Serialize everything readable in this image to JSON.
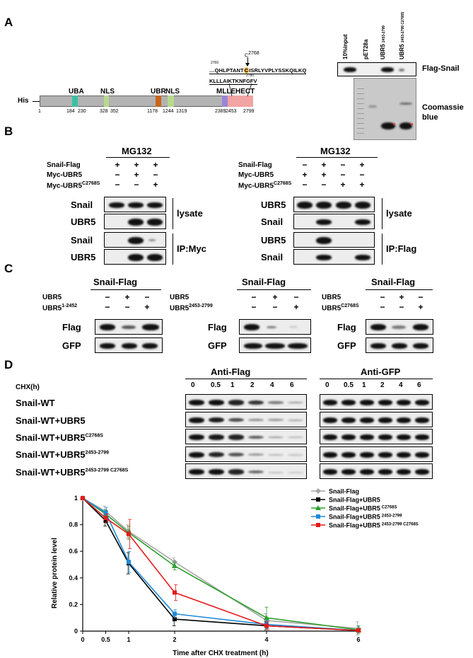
{
  "panelA": {
    "letter": "A",
    "his": "His",
    "domains": [
      "UBA",
      "NLS",
      "UBR",
      "NLS",
      "MLLE",
      "HECT"
    ],
    "positions": [
      "1",
      "184",
      "230",
      "328",
      "352",
      "1178",
      "1244",
      "1319",
      "2389",
      "2453",
      "2799"
    ],
    "cys_label": "C",
    "cys_sup": "2768",
    "seq_start": "2760",
    "seq_line1_pre": "…QHLPTANT",
    "seq_line1_c": "C",
    "seq_line1_post": "ISRLYVPLYSSKQILKQ",
    "seq_mid": "2780",
    "seq_line2": "KLLLAIKTKNFGFV",
    "gel_lanes": [
      "10%input",
      "pET28a",
      "UBR5",
      "UBR5"
    ],
    "gel_lane_sups": [
      "",
      "",
      "2453-2799",
      "2453-2799 C2768S"
    ],
    "flag_snail": "Flag-Snail",
    "coomassie": "Coomassie blue"
  },
  "panelB": {
    "letter": "B",
    "left": {
      "treatment": "MG132",
      "rows": [
        "Snail-Flag",
        "Myc-UBR5",
        "Myc-UBR5"
      ],
      "row_sups": [
        "",
        "",
        "C2768S"
      ],
      "signs": [
        [
          "+",
          "+",
          "+"
        ],
        [
          "−",
          "+",
          "−"
        ],
        [
          "−",
          "−",
          "+"
        ]
      ],
      "blots": [
        "Snail",
        "UBR5",
        "Snail",
        "UBR5"
      ],
      "groups": [
        "lysate",
        "IP:Myc"
      ]
    },
    "right": {
      "treatment": "MG132",
      "rows": [
        "Snail-Flag",
        "Myc-UBR5",
        "Myc-UBR5"
      ],
      "row_sups": [
        "",
        "",
        "C2768S"
      ],
      "signs": [
        [
          "−",
          "+",
          "−",
          "+"
        ],
        [
          "+",
          "+",
          "−",
          "−"
        ],
        [
          "−",
          "−",
          "+",
          "+"
        ]
      ],
      "blots": [
        "UBR5",
        "Snail",
        "UBR5",
        "Snail"
      ],
      "groups": [
        "lysate",
        "IP:Flag"
      ]
    }
  },
  "panelC": {
    "letter": "C",
    "title": "Snail-Flag",
    "subpanels": [
      {
        "rows": [
          "UBR5",
          "UBR5"
        ],
        "row_sups": [
          "",
          "1-2452"
        ],
        "signs": [
          [
            "−",
            "+",
            "−"
          ],
          [
            "−",
            "−",
            "+"
          ]
        ]
      },
      {
        "rows": [
          "UBR5",
          "UBR5"
        ],
        "row_sups": [
          "",
          "2453-2799"
        ],
        "signs": [
          [
            "−",
            "+",
            "−"
          ],
          [
            "−",
            "−",
            "+"
          ]
        ]
      },
      {
        "rows": [
          "UBR5",
          "UBR5"
        ],
        "row_sups": [
          "",
          "C2768S"
        ],
        "signs": [
          [
            "−",
            "+",
            "−"
          ],
          [
            "−",
            "−",
            "+"
          ]
        ]
      }
    ],
    "blots": [
      "Flag",
      "GFP"
    ]
  },
  "panelD": {
    "letter": "D",
    "anti_flag": "Anti-Flag",
    "anti_gfp": "Anti-GFP",
    "chx": "CHX(h)",
    "timepoints": [
      "0",
      "0.5",
      "1",
      "2",
      "4",
      "6"
    ],
    "rows": [
      "Snail-WT",
      "Snail-WT+UBR5",
      "Snail-WT+UBR5",
      "Snail-WT+UBR5",
      "Snail-WT+UBR5"
    ],
    "row_sups": [
      "",
      "",
      "C2768S",
      "2453-2799",
      "2453-2799 C2768S"
    ]
  },
  "chart_data": {
    "type": "line",
    "xlabel": "Time after CHX treatment (h)",
    "ylabel": "Relative protein level",
    "x": [
      0,
      0.5,
      1,
      2,
      4,
      6
    ],
    "xticks": [
      "0",
      "0.5",
      "1",
      "2",
      "4",
      "6"
    ],
    "yticks": [
      "0",
      "0.2",
      "0.4",
      "0.6",
      "0.8",
      "1"
    ],
    "ylim": [
      0,
      1
    ],
    "legend_position": "top-right",
    "series": [
      {
        "name": "Snail-Flag",
        "sup": "",
        "color": "#a6a6a6",
        "marker": "diamond",
        "values": [
          1.0,
          0.9,
          0.75,
          0.52,
          0.08,
          0.02
        ],
        "err": [
          0,
          0.04,
          0.05,
          0.03,
          0.05,
          0.05
        ]
      },
      {
        "name": "Snail-Flag+UBR5",
        "sup": "",
        "color": "#000000",
        "marker": "square",
        "values": [
          1.0,
          0.83,
          0.51,
          0.09,
          0.04,
          0.005
        ],
        "err": [
          0,
          0.04,
          0.08,
          0.05,
          0.03,
          0.01
        ]
      },
      {
        "name": "Snail-Flag+UBR5",
        "sup": "C2768S",
        "color": "#2ca02c",
        "marker": "triangle",
        "values": [
          1.0,
          0.88,
          0.74,
          0.49,
          0.1,
          0.01
        ],
        "err": [
          0,
          0.03,
          0.05,
          0.03,
          0.08,
          0.03
        ]
      },
      {
        "name": "Snail-Flag+UBR5",
        "sup": "2453-2799",
        "color": "#1f8ad6",
        "marker": "square",
        "values": [
          1.0,
          0.89,
          0.52,
          0.13,
          0.05,
          0.005
        ],
        "err": [
          0,
          0.04,
          0.08,
          0.03,
          0.03,
          0.01
        ]
      },
      {
        "name": "Snail-Flag+UBR5",
        "sup": "2453-2799 C2768S",
        "color": "#e31a1c",
        "marker": "square",
        "values": [
          1.0,
          0.85,
          0.73,
          0.29,
          0.04,
          0.005
        ],
        "err": [
          0,
          0.03,
          0.11,
          0.06,
          0.03,
          0.01
        ]
      }
    ]
  }
}
